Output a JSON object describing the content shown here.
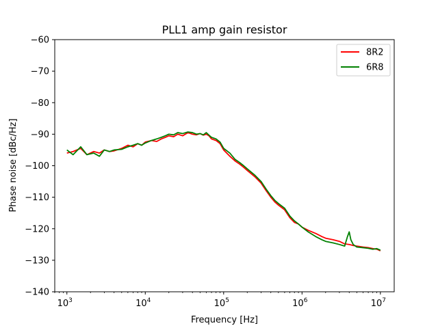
{
  "chart_data": {
    "type": "line",
    "title": "PLL1 amp gain resistor",
    "xlabel": "Frequency [Hz]",
    "ylabel": "Phase noise [dBc/Hz]",
    "xscale": "log",
    "xlim": [
      700,
      15000000
    ],
    "ylim": [
      -140,
      -60
    ],
    "grid": false,
    "legend_position": "upper right",
    "x_ticks": [
      1000,
      10000,
      100000,
      1000000,
      10000000
    ],
    "x_tick_labels": [
      {
        "base": "10",
        "exp": "3"
      },
      {
        "base": "10",
        "exp": "4"
      },
      {
        "base": "10",
        "exp": "5"
      },
      {
        "base": "10",
        "exp": "6"
      },
      {
        "base": "10",
        "exp": "7"
      }
    ],
    "y_ticks": [
      -140,
      -130,
      -120,
      -110,
      -100,
      -90,
      -80,
      -70,
      -60
    ],
    "y_tick_labels": [
      "−140",
      "−130",
      "−120",
      "−110",
      "−100",
      "−90",
      "−80",
      "−70",
      "−60"
    ],
    "series": [
      {
        "name": "8R2",
        "color": "#ff0000",
        "x": [
          1000,
          1200,
          1500,
          1800,
          2200,
          2600,
          3000,
          3500,
          4000,
          5000,
          6000,
          7000,
          8000,
          9000,
          10000,
          12000,
          14000,
          16000,
          18000,
          20000,
          23000,
          26000,
          30000,
          35000,
          40000,
          45000,
          50000,
          55000,
          60000,
          65000,
          70000,
          80000,
          90000,
          100000,
          120000,
          140000,
          160000,
          180000,
          200000,
          250000,
          300000,
          350000,
          400000,
          450000,
          500000,
          600000,
          700000,
          800000,
          900000,
          1000000,
          1200000,
          1500000,
          1800000,
          2000000,
          2500000,
          3000000,
          3500000,
          4000000,
          4500000,
          5000000,
          6000000,
          7000000,
          8000000,
          9000000,
          10000000
        ],
        "values": [
          -96.0,
          -95.5,
          -94.5,
          -96.5,
          -95.5,
          -96.0,
          -95.0,
          -95.5,
          -95.3,
          -94.5,
          -93.5,
          -94.0,
          -93.0,
          -93.5,
          -92.5,
          -92.0,
          -92.3,
          -91.5,
          -91.0,
          -90.5,
          -90.8,
          -90.0,
          -90.5,
          -89.5,
          -90.0,
          -90.2,
          -89.8,
          -90.3,
          -90.0,
          -90.5,
          -91.5,
          -92.0,
          -93.0,
          -95.0,
          -97.0,
          -98.5,
          -99.5,
          -100.5,
          -101.5,
          -103.5,
          -105.5,
          -108.0,
          -110.0,
          -111.5,
          -112.5,
          -114.0,
          -116.5,
          -118.0,
          -118.5,
          -119.5,
          -120.5,
          -121.5,
          -122.5,
          -123.0,
          -123.5,
          -124.0,
          -124.8,
          -125.0,
          -125.3,
          -125.5,
          -125.8,
          -126.0,
          -126.3,
          -126.5,
          -127.0
        ]
      },
      {
        "name": "6R8",
        "color": "#008000",
        "x": [
          1000,
          1200,
          1500,
          1800,
          2200,
          2600,
          3000,
          3500,
          4000,
          5000,
          6000,
          7000,
          8000,
          9000,
          10000,
          12000,
          14000,
          16000,
          18000,
          20000,
          23000,
          26000,
          30000,
          35000,
          40000,
          45000,
          50000,
          55000,
          60000,
          65000,
          70000,
          80000,
          90000,
          100000,
          120000,
          140000,
          160000,
          180000,
          200000,
          250000,
          300000,
          350000,
          400000,
          450000,
          500000,
          600000,
          700000,
          800000,
          900000,
          1000000,
          1200000,
          1500000,
          1800000,
          2000000,
          2500000,
          3000000,
          3500000,
          3800000,
          4000000,
          4200000,
          4500000,
          5000000,
          6000000,
          7000000,
          8000000,
          9000000,
          10000000
        ],
        "values": [
          -95.0,
          -96.5,
          -94.0,
          -96.5,
          -96.0,
          -97.0,
          -95.0,
          -95.5,
          -95.0,
          -94.8,
          -94.0,
          -93.5,
          -93.0,
          -93.5,
          -92.8,
          -92.0,
          -91.5,
          -91.0,
          -90.5,
          -90.0,
          -90.2,
          -89.5,
          -89.8,
          -89.3,
          -89.5,
          -90.0,
          -89.8,
          -90.2,
          -89.5,
          -90.3,
          -91.0,
          -91.5,
          -92.5,
          -94.5,
          -96.0,
          -98.0,
          -99.0,
          -100.0,
          -101.0,
          -103.0,
          -105.0,
          -107.5,
          -109.5,
          -111.0,
          -112.0,
          -113.5,
          -116.0,
          -117.5,
          -118.5,
          -119.5,
          -121.0,
          -122.5,
          -123.5,
          -124.0,
          -124.5,
          -125.0,
          -125.5,
          -122.5,
          -121.0,
          -123.5,
          -125.0,
          -125.8,
          -126.0,
          -126.2,
          -126.5,
          -126.3,
          -126.8
        ]
      }
    ]
  }
}
